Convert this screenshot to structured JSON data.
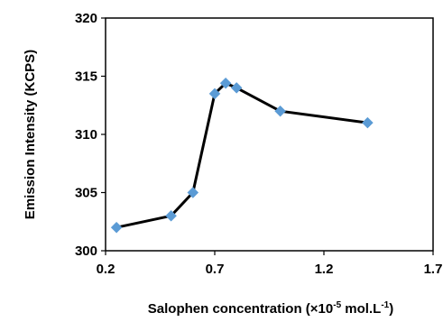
{
  "chart_data": {
    "type": "line",
    "title": "",
    "xlabel_parts": [
      "Salophen concentration (×10",
      "-5",
      " mol.L",
      "-1",
      ")"
    ],
    "ylabel": "Emission Intensity  (KCPS)",
    "xlim": [
      0.2,
      1.7
    ],
    "ylim": [
      300,
      320
    ],
    "xticks": [
      0.2,
      0.7,
      1.2,
      1.7
    ],
    "xtick_labels": [
      "0.2",
      "0.7",
      "1.2",
      "1.7"
    ],
    "yticks": [
      300,
      305,
      310,
      315,
      320
    ],
    "ytick_labels": [
      "300",
      "305",
      "310",
      "315",
      "320"
    ],
    "grid": false,
    "legend": "none",
    "series": [
      {
        "x": [
          0.25,
          0.5,
          0.6,
          0.7,
          0.75,
          0.8,
          1.0,
          1.4
        ],
        "y": [
          302.0,
          303.0,
          305.0,
          313.5,
          314.4,
          314.0,
          312.0,
          311.0
        ],
        "line_color": "#000000",
        "marker": "diamond",
        "marker_color": "#5B9BD5"
      }
    ]
  }
}
